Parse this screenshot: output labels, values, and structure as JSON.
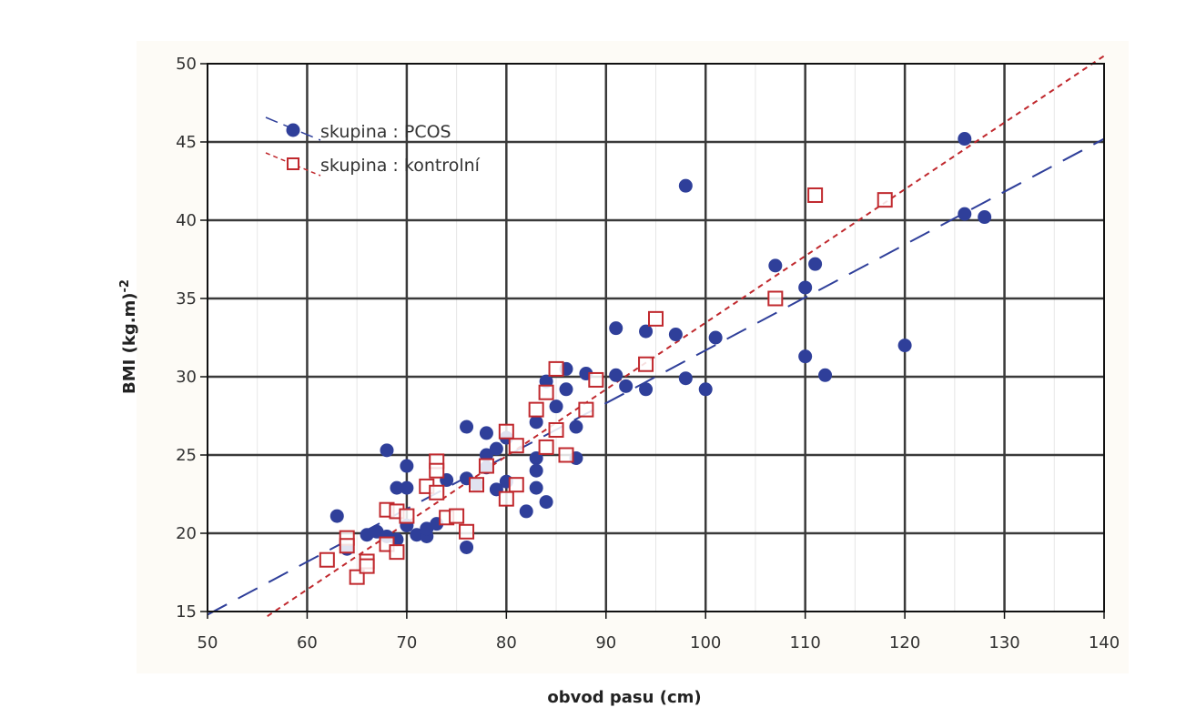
{
  "chart_data": {
    "type": "scatter",
    "title": "",
    "xlabel": "obvod pasu (cm)",
    "ylabel": "BMI (kg.m)",
    "ylabel_sup": "-2",
    "xlim": [
      50,
      140
    ],
    "ylim": [
      15,
      50
    ],
    "x_ticks": [
      50,
      60,
      70,
      80,
      90,
      100,
      110,
      120,
      130,
      140
    ],
    "y_ticks": [
      15,
      20,
      25,
      30,
      35,
      40,
      45,
      50
    ],
    "grid": true,
    "legend_position": "top-left",
    "series": [
      {
        "name": "skupina  : PCOS",
        "marker": "filled-circle",
        "color": "#2f3f9a",
        "line_style": "long-dash",
        "fit": {
          "x": [
            50,
            140
          ],
          "y": [
            14.8,
            45.2
          ]
        },
        "points": [
          [
            63,
            21.1
          ],
          [
            64,
            19.0
          ],
          [
            66,
            19.9
          ],
          [
            67,
            20.1
          ],
          [
            68,
            25.3
          ],
          [
            68,
            19.8
          ],
          [
            69,
            22.9
          ],
          [
            69,
            19.6
          ],
          [
            70,
            24.3
          ],
          [
            70,
            22.9
          ],
          [
            70,
            20.5
          ],
          [
            71,
            19.9
          ],
          [
            72,
            19.8
          ],
          [
            72,
            20.3
          ],
          [
            73,
            20.6
          ],
          [
            74,
            23.4
          ],
          [
            76,
            26.8
          ],
          [
            76,
            23.5
          ],
          [
            76,
            19.1
          ],
          [
            77,
            23.1
          ],
          [
            78,
            26.4
          ],
          [
            78,
            25.0
          ],
          [
            78,
            24.2
          ],
          [
            79,
            25.4
          ],
          [
            79,
            22.8
          ],
          [
            80,
            26.1
          ],
          [
            80,
            23.3
          ],
          [
            82,
            21.4
          ],
          [
            83,
            27.1
          ],
          [
            83,
            24.8
          ],
          [
            83,
            24.0
          ],
          [
            83,
            22.9
          ],
          [
            84,
            29.7
          ],
          [
            84,
            22.0
          ],
          [
            85,
            28.1
          ],
          [
            86,
            30.5
          ],
          [
            86,
            29.2
          ],
          [
            87,
            26.8
          ],
          [
            87,
            24.8
          ],
          [
            88,
            30.2
          ],
          [
            91,
            33.1
          ],
          [
            91,
            30.1
          ],
          [
            92,
            29.4
          ],
          [
            94,
            32.9
          ],
          [
            94,
            29.2
          ],
          [
            97,
            32.7
          ],
          [
            98,
            42.2
          ],
          [
            98,
            29.9
          ],
          [
            100,
            29.2
          ],
          [
            101,
            32.5
          ],
          [
            107,
            37.1
          ],
          [
            110,
            35.7
          ],
          [
            110,
            31.3
          ],
          [
            111,
            37.2
          ],
          [
            112,
            30.1
          ],
          [
            120,
            32.0
          ],
          [
            126,
            45.2
          ],
          [
            126,
            40.4
          ],
          [
            128,
            40.2
          ]
        ]
      },
      {
        "name": "skupina  : kontrolní",
        "marker": "open-square",
        "color": "#c0282d",
        "line_style": "short-dash",
        "fit": {
          "x": [
            56,
            140
          ],
          "y": [
            14.7,
            50.5
          ]
        },
        "points": [
          [
            62,
            18.3
          ],
          [
            64,
            19.7
          ],
          [
            64,
            19.2
          ],
          [
            65,
            17.2
          ],
          [
            66,
            18.2
          ],
          [
            66,
            17.9
          ],
          [
            68,
            21.5
          ],
          [
            68,
            19.3
          ],
          [
            69,
            21.4
          ],
          [
            69,
            18.8
          ],
          [
            70,
            21.1
          ],
          [
            72,
            23.0
          ],
          [
            73,
            24.6
          ],
          [
            73,
            24.0
          ],
          [
            73,
            22.6
          ],
          [
            74,
            21.0
          ],
          [
            75,
            21.1
          ],
          [
            76,
            20.1
          ],
          [
            77,
            23.1
          ],
          [
            78,
            24.3
          ],
          [
            80,
            26.5
          ],
          [
            80,
            22.2
          ],
          [
            81,
            25.6
          ],
          [
            81,
            23.1
          ],
          [
            83,
            27.9
          ],
          [
            84,
            29.0
          ],
          [
            84,
            25.5
          ],
          [
            85,
            30.5
          ],
          [
            85,
            26.6
          ],
          [
            86,
            25.0
          ],
          [
            88,
            27.9
          ],
          [
            89,
            29.8
          ],
          [
            94,
            30.8
          ],
          [
            95,
            33.7
          ],
          [
            107,
            35.0
          ],
          [
            111,
            41.6
          ],
          [
            118,
            41.3
          ]
        ]
      }
    ]
  }
}
